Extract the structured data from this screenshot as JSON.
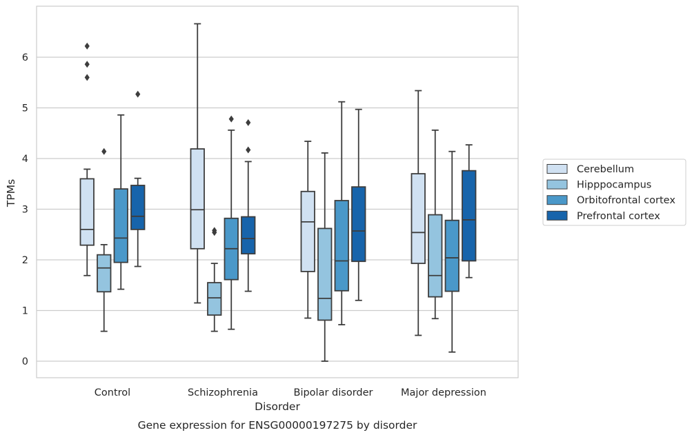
{
  "caption": "Gene expression for ENSG00000197275 by disorder",
  "colors": {
    "Cerebellum": "#d0e1f2",
    "Hipppocampus": "#94c4df",
    "Orbitofrontal cortex": "#4a98c9",
    "Prefrontal cortex": "#1764ab",
    "box_edge": "#3d3d3d",
    "grid": "#cccccc",
    "frame": "#cccccc"
  },
  "chart_data": {
    "type": "boxplot",
    "xlabel": "Disorder",
    "ylabel": "TPMs",
    "categories": [
      "Control",
      "Schizophrenia",
      "Bipolar disorder",
      "Major depression"
    ],
    "yticks": [
      0,
      1,
      2,
      3,
      4,
      5,
      6
    ],
    "ylim": [
      -0.32,
      7.05
    ],
    "grid": true,
    "legend_position": "right",
    "legend": [
      "Cerebellum",
      "Hipppocampus",
      "Orbitofrontal cortex",
      "Prefrontal cortex"
    ],
    "series": [
      {
        "name": "Cerebellum",
        "boxes": [
          {
            "whislo": 1.69,
            "q1": 2.29,
            "med": 2.6,
            "q3": 3.6,
            "whishi": 3.79,
            "fliers": [
              5.6,
              5.86,
              6.22
            ]
          },
          {
            "whislo": 1.15,
            "q1": 2.22,
            "med": 2.99,
            "q3": 4.19,
            "whishi": 6.66,
            "fliers": []
          },
          {
            "whislo": 0.85,
            "q1": 1.77,
            "med": 2.75,
            "q3": 3.35,
            "whishi": 4.34,
            "fliers": []
          },
          {
            "whislo": 0.51,
            "q1": 1.93,
            "med": 2.54,
            "q3": 3.7,
            "whishi": 5.34,
            "fliers": []
          }
        ]
      },
      {
        "name": "Hipppocampus",
        "boxes": [
          {
            "whislo": 0.59,
            "q1": 1.37,
            "med": 1.84,
            "q3": 2.1,
            "whishi": 2.3,
            "fliers": [
              4.14
            ]
          },
          {
            "whislo": 0.59,
            "q1": 0.91,
            "med": 1.25,
            "q3": 1.55,
            "whishi": 1.93,
            "fliers": [
              2.54,
              2.58
            ]
          },
          {
            "whislo": 0.0,
            "q1": 0.81,
            "med": 1.24,
            "q3": 2.62,
            "whishi": 4.11,
            "fliers": []
          },
          {
            "whislo": 0.84,
            "q1": 1.27,
            "med": 1.69,
            "q3": 2.89,
            "whishi": 4.56,
            "fliers": []
          }
        ]
      },
      {
        "name": "Orbitofrontal cortex",
        "boxes": [
          {
            "whislo": 1.42,
            "q1": 1.95,
            "med": 2.43,
            "q3": 3.4,
            "whishi": 4.86,
            "fliers": []
          },
          {
            "whislo": 0.63,
            "q1": 1.61,
            "med": 2.22,
            "q3": 2.82,
            "whishi": 4.56,
            "fliers": [
              4.78
            ]
          },
          {
            "whislo": 0.72,
            "q1": 1.39,
            "med": 1.98,
            "q3": 3.17,
            "whishi": 5.12,
            "fliers": []
          },
          {
            "whislo": 0.18,
            "q1": 1.38,
            "med": 2.04,
            "q3": 2.78,
            "whishi": 4.14,
            "fliers": []
          }
        ]
      },
      {
        "name": "Prefrontal cortex",
        "boxes": [
          {
            "whislo": 1.87,
            "q1": 2.6,
            "med": 2.86,
            "q3": 3.47,
            "whishi": 3.61,
            "fliers": [
              5.27
            ]
          },
          {
            "whislo": 1.38,
            "q1": 2.12,
            "med": 2.42,
            "q3": 2.85,
            "whishi": 3.94,
            "fliers": [
              4.17,
              4.71
            ]
          },
          {
            "whislo": 1.2,
            "q1": 1.97,
            "med": 2.57,
            "q3": 3.44,
            "whishi": 4.97,
            "fliers": []
          },
          {
            "whislo": 1.65,
            "q1": 1.98,
            "med": 2.79,
            "q3": 3.76,
            "whishi": 4.27,
            "fliers": []
          }
        ]
      }
    ]
  }
}
